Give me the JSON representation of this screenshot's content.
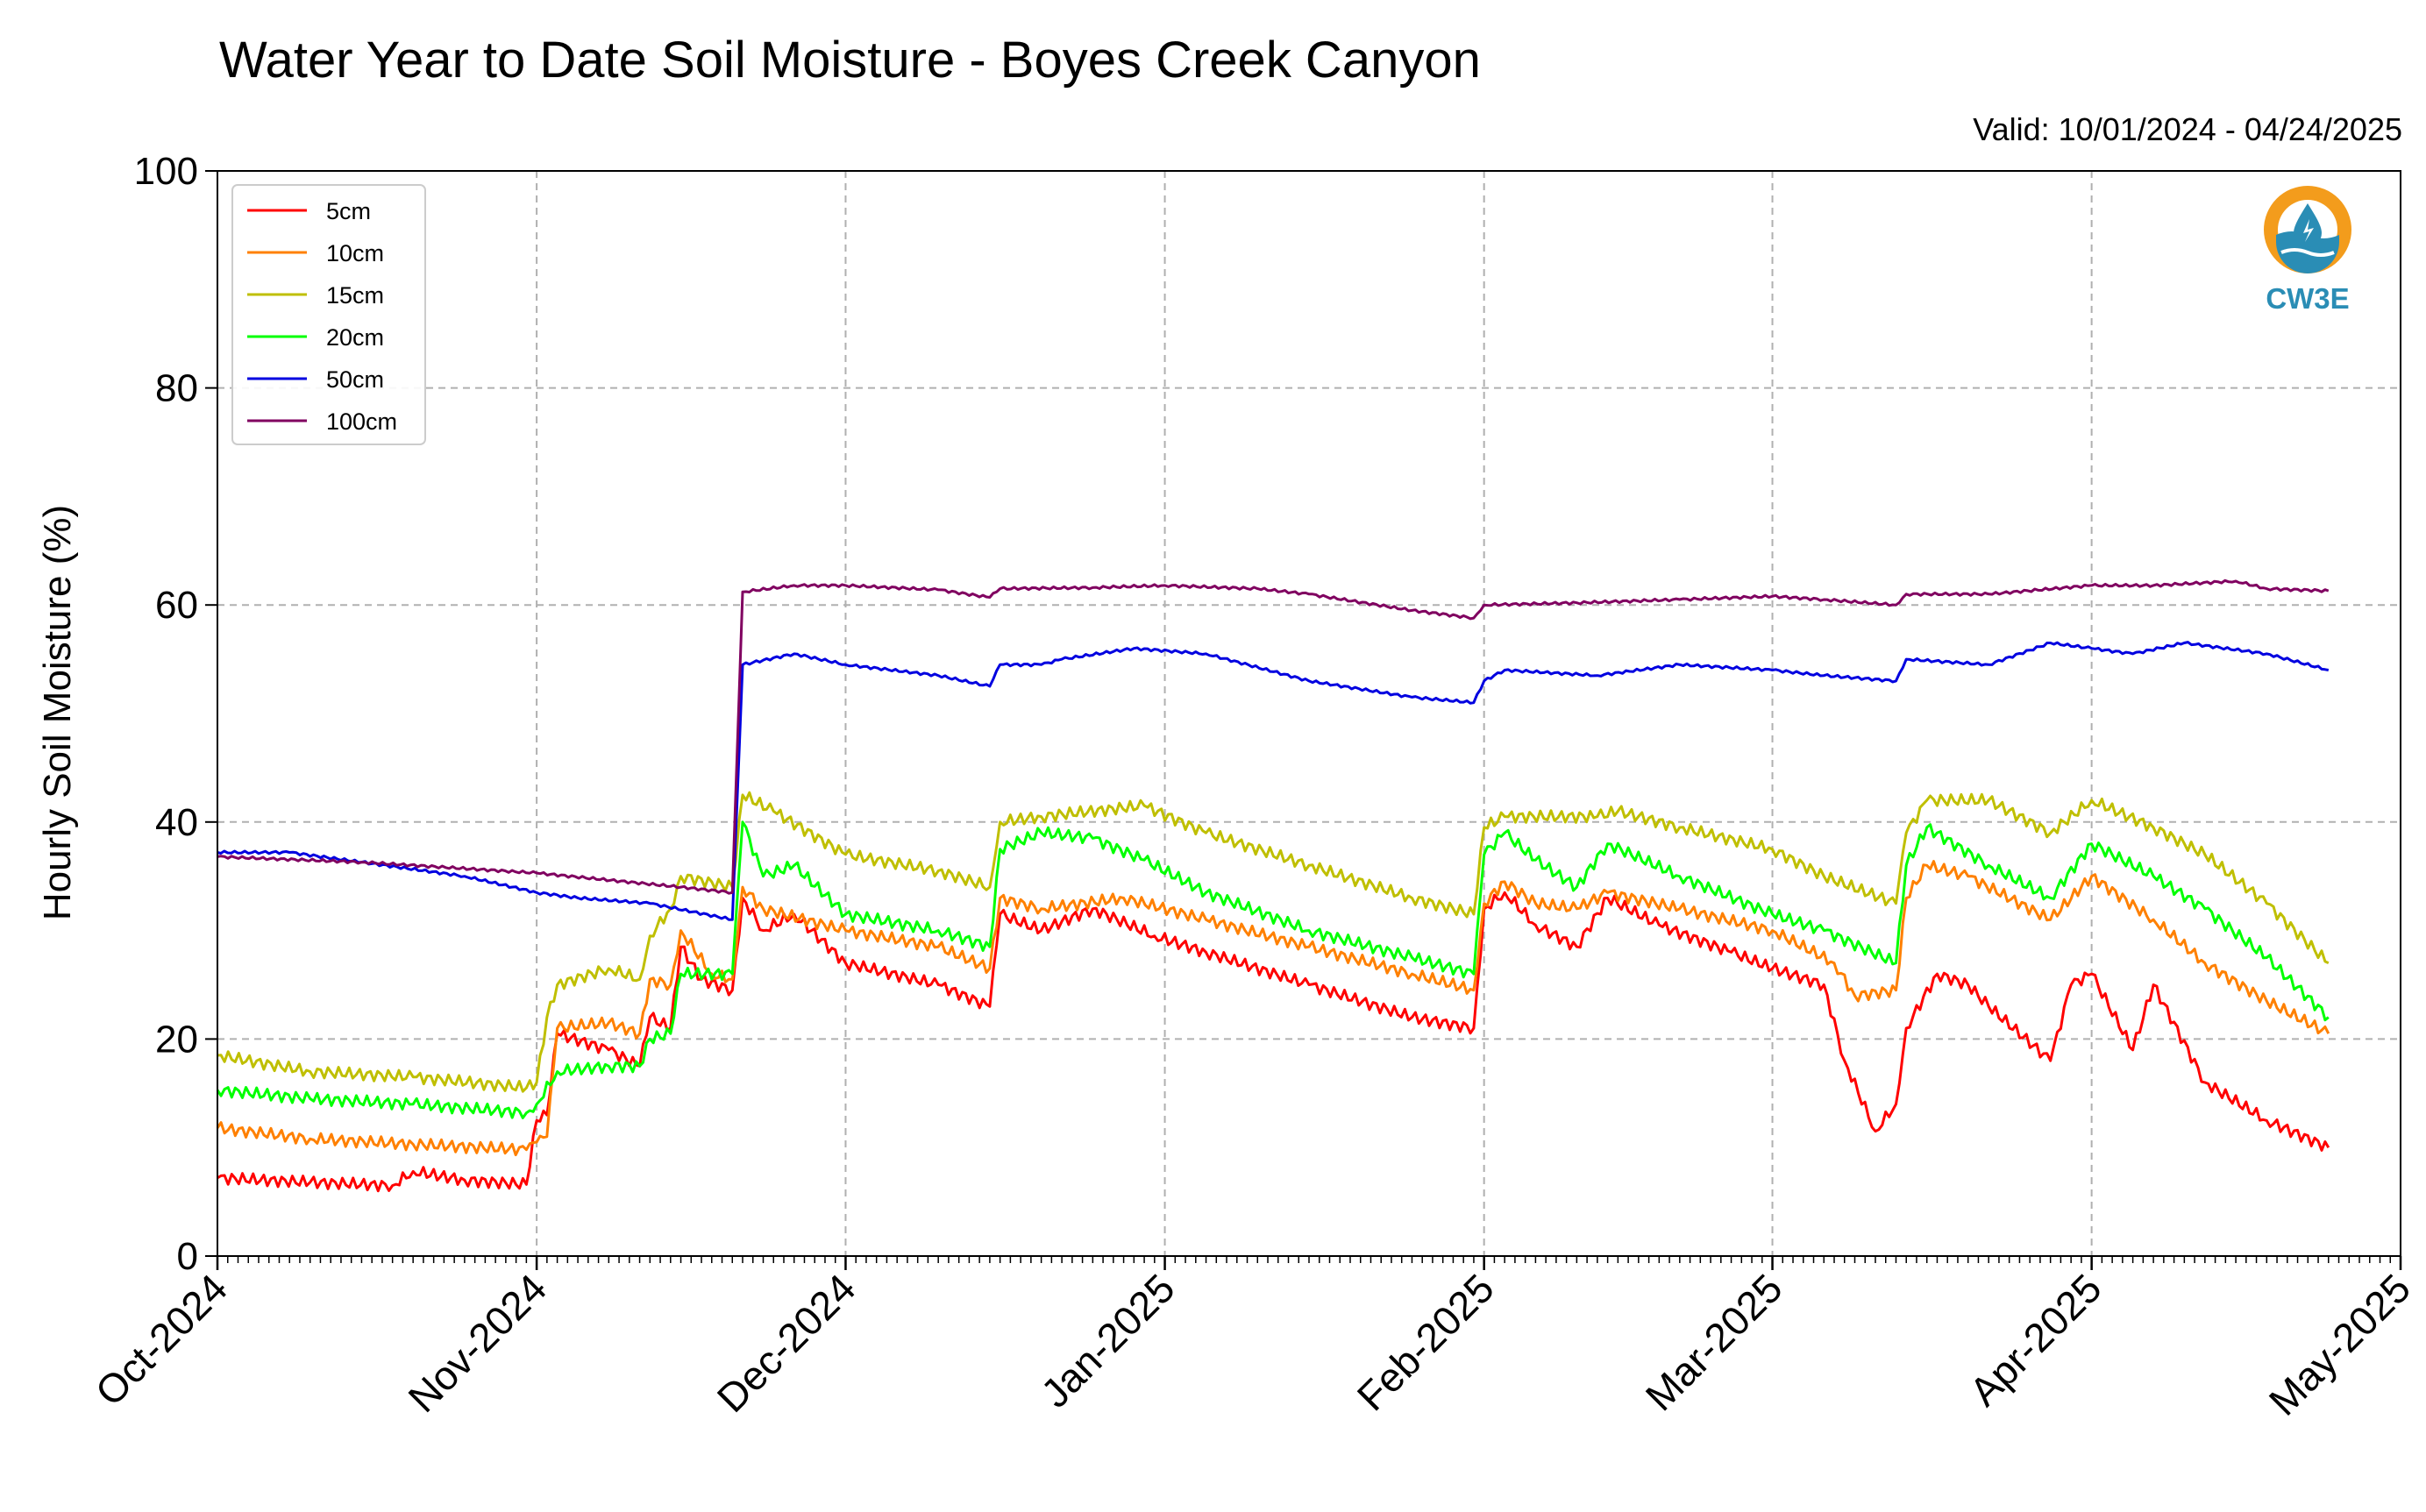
{
  "chart_data": {
    "type": "line",
    "title": "Water Year to Date Soil Moisture - Boyes Creek Canyon",
    "subtitle": "Valid: 10/01/2024 - 04/24/2025",
    "ylabel": "Hourly Soil Moisture (%)",
    "xlabel": "",
    "ylim": [
      0,
      100
    ],
    "yticks": [
      "0",
      "20",
      "40",
      "60",
      "80",
      "100"
    ],
    "xlim": [
      "2024-10-01",
      "2025-05-01"
    ],
    "xticks": [
      {
        "date": "2024-10-01",
        "label": "Oct-2024"
      },
      {
        "date": "2024-11-01",
        "label": "Nov-2024"
      },
      {
        "date": "2024-12-01",
        "label": "Dec-2024"
      },
      {
        "date": "2025-01-01",
        "label": "Jan-2025"
      },
      {
        "date": "2025-02-01",
        "label": "Feb-2025"
      },
      {
        "date": "2025-03-01",
        "label": "Mar-2025"
      },
      {
        "date": "2025-04-01",
        "label": "Apr-2025"
      },
      {
        "date": "2025-05-01",
        "label": "May-2025"
      }
    ],
    "grid": true,
    "legend_position": "top-left",
    "series": [
      {
        "name": "5cm",
        "color": "#ff0000",
        "points": [
          [
            "2024-10-01",
            7.2
          ],
          [
            "2024-10-10",
            6.8
          ],
          [
            "2024-10-18",
            6.5
          ],
          [
            "2024-10-20",
            7.8
          ],
          [
            "2024-10-25",
            7.0
          ],
          [
            "2024-10-31",
            6.6
          ],
          [
            "2024-11-01",
            12.5
          ],
          [
            "2024-11-02",
            13.0
          ],
          [
            "2024-11-03",
            20.5
          ],
          [
            "2024-11-08",
            19.0
          ],
          [
            "2024-11-11",
            17.5
          ],
          [
            "2024-11-12",
            22.0
          ],
          [
            "2024-11-14",
            21.0
          ],
          [
            "2024-11-15",
            28.5
          ],
          [
            "2024-11-17",
            25.5
          ],
          [
            "2024-11-20",
            24.5
          ],
          [
            "2024-11-21",
            33.0
          ],
          [
            "2024-11-23",
            30.0
          ],
          [
            "2024-11-26",
            31.5
          ],
          [
            "2024-12-01",
            27.0
          ],
          [
            "2024-12-10",
            25.0
          ],
          [
            "2024-12-15",
            23.0
          ],
          [
            "2024-12-16",
            31.5
          ],
          [
            "2024-12-20",
            30.0
          ],
          [
            "2024-12-25",
            32.0
          ],
          [
            "2024-12-31",
            29.5
          ],
          [
            "2025-01-05",
            28.0
          ],
          [
            "2025-01-15",
            25.0
          ],
          [
            "2025-01-25",
            22.0
          ],
          [
            "2025-01-31",
            21.0
          ],
          [
            "2025-02-01",
            32.0
          ],
          [
            "2025-02-03",
            33.5
          ],
          [
            "2025-02-06",
            30.5
          ],
          [
            "2025-02-10",
            28.5
          ],
          [
            "2025-02-13",
            33.0
          ],
          [
            "2025-02-18",
            30.5
          ],
          [
            "2025-02-25",
            28.0
          ],
          [
            "2025-03-01",
            26.5
          ],
          [
            "2025-03-06",
            25.0
          ],
          [
            "2025-03-08",
            18.0
          ],
          [
            "2025-03-11",
            11.5
          ],
          [
            "2025-03-13",
            14.0
          ],
          [
            "2025-03-14",
            21.0
          ],
          [
            "2025-03-17",
            26.0
          ],
          [
            "2025-03-20",
            25.0
          ],
          [
            "2025-03-22",
            23.0
          ],
          [
            "2025-03-28",
            18.0
          ],
          [
            "2025-03-30",
            25.0
          ],
          [
            "2025-04-01",
            26.0
          ],
          [
            "2025-04-05",
            19.0
          ],
          [
            "2025-04-07",
            25.0
          ],
          [
            "2025-04-12",
            16.0
          ],
          [
            "2025-04-18",
            12.5
          ],
          [
            "2025-04-24",
            10.0
          ]
        ]
      },
      {
        "name": "10cm",
        "color": "#ff8000",
        "points": [
          [
            "2024-10-01",
            11.8
          ],
          [
            "2024-10-10",
            10.8
          ],
          [
            "2024-10-20",
            10.3
          ],
          [
            "2024-10-31",
            9.8
          ],
          [
            "2024-11-01",
            10.5
          ],
          [
            "2024-11-02",
            11.0
          ],
          [
            "2024-11-03",
            21.0
          ],
          [
            "2024-11-08",
            21.5
          ],
          [
            "2024-11-11",
            20.5
          ],
          [
            "2024-11-12",
            25.5
          ],
          [
            "2024-11-14",
            25.0
          ],
          [
            "2024-11-15",
            30.0
          ],
          [
            "2024-11-18",
            26.0
          ],
          [
            "2024-11-20",
            25.5
          ],
          [
            "2024-11-21",
            34.0
          ],
          [
            "2024-11-23",
            32.0
          ],
          [
            "2024-12-01",
            30.0
          ],
          [
            "2024-12-10",
            28.5
          ],
          [
            "2024-12-15",
            26.5
          ],
          [
            "2024-12-16",
            33.0
          ],
          [
            "2024-12-20",
            32.0
          ],
          [
            "2024-12-28",
            33.0
          ],
          [
            "2025-01-05",
            31.0
          ],
          [
            "2025-01-15",
            28.5
          ],
          [
            "2025-01-25",
            26.0
          ],
          [
            "2025-01-31",
            24.5
          ],
          [
            "2025-02-01",
            32.5
          ],
          [
            "2025-02-03",
            34.5
          ],
          [
            "2025-02-06",
            32.5
          ],
          [
            "2025-02-10",
            32.0
          ],
          [
            "2025-02-13",
            33.5
          ],
          [
            "2025-02-20",
            32.0
          ],
          [
            "2025-03-01",
            30.0
          ],
          [
            "2025-03-07",
            27.0
          ],
          [
            "2025-03-09",
            24.0
          ],
          [
            "2025-03-13",
            24.5
          ],
          [
            "2025-03-14",
            33.0
          ],
          [
            "2025-03-16",
            36.0
          ],
          [
            "2025-03-20",
            35.0
          ],
          [
            "2025-03-28",
            31.0
          ],
          [
            "2025-04-01",
            35.0
          ],
          [
            "2025-04-07",
            31.0
          ],
          [
            "2025-04-12",
            27.0
          ],
          [
            "2025-04-18",
            23.5
          ],
          [
            "2025-04-24",
            20.5
          ]
        ]
      },
      {
        "name": "15cm",
        "color": "#bfbf00",
        "points": [
          [
            "2024-10-01",
            18.5
          ],
          [
            "2024-10-10",
            17.0
          ],
          [
            "2024-10-20",
            16.5
          ],
          [
            "2024-10-31",
            15.5
          ],
          [
            "2024-11-01",
            16.0
          ],
          [
            "2024-11-02",
            22.0
          ],
          [
            "2024-11-03",
            25.0
          ],
          [
            "2024-11-08",
            26.5
          ],
          [
            "2024-11-11",
            25.5
          ],
          [
            "2024-11-12",
            29.5
          ],
          [
            "2024-11-14",
            32.0
          ],
          [
            "2024-11-15",
            35.0
          ],
          [
            "2024-11-20",
            34.0
          ],
          [
            "2024-11-21",
            42.5
          ],
          [
            "2024-11-24",
            41.0
          ],
          [
            "2024-12-01",
            37.0
          ],
          [
            "2024-12-10",
            35.5
          ],
          [
            "2024-12-15",
            34.0
          ],
          [
            "2024-12-16",
            40.0
          ],
          [
            "2024-12-20",
            40.5
          ],
          [
            "2024-12-30",
            41.5
          ],
          [
            "2025-01-05",
            39.0
          ],
          [
            "2025-01-15",
            36.0
          ],
          [
            "2025-01-25",
            33.0
          ],
          [
            "2025-01-31",
            31.5
          ],
          [
            "2025-02-01",
            39.5
          ],
          [
            "2025-02-03",
            40.5
          ],
          [
            "2025-02-12",
            40.5
          ],
          [
            "2025-02-14",
            41.0
          ],
          [
            "2025-02-20",
            39.5
          ],
          [
            "2025-03-01",
            37.5
          ],
          [
            "2025-03-06",
            35.0
          ],
          [
            "2025-03-13",
            32.5
          ],
          [
            "2025-03-14",
            39.0
          ],
          [
            "2025-03-16",
            42.0
          ],
          [
            "2025-03-22",
            42.0
          ],
          [
            "2025-03-28",
            39.0
          ],
          [
            "2025-04-01",
            42.0
          ],
          [
            "2025-04-07",
            39.5
          ],
          [
            "2025-04-12",
            37.0
          ],
          [
            "2025-04-18",
            32.5
          ],
          [
            "2025-04-24",
            27.0
          ]
        ]
      },
      {
        "name": "20cm",
        "color": "#00ff00",
        "points": [
          [
            "2024-10-01",
            15.3
          ],
          [
            "2024-10-10",
            14.5
          ],
          [
            "2024-10-20",
            14.0
          ],
          [
            "2024-10-31",
            13.2
          ],
          [
            "2024-11-01",
            14.0
          ],
          [
            "2024-11-03",
            17.0
          ],
          [
            "2024-11-08",
            17.5
          ],
          [
            "2024-11-11",
            17.5
          ],
          [
            "2024-11-12",
            20.0
          ],
          [
            "2024-11-14",
            20.5
          ],
          [
            "2024-11-15",
            26.0
          ],
          [
            "2024-11-20",
            26.0
          ],
          [
            "2024-11-21",
            40.0
          ],
          [
            "2024-11-23",
            35.0
          ],
          [
            "2024-11-26",
            36.0
          ],
          [
            "2024-12-01",
            31.5
          ],
          [
            "2024-12-10",
            30.0
          ],
          [
            "2024-12-15",
            28.5
          ],
          [
            "2024-12-16",
            37.5
          ],
          [
            "2024-12-20",
            39.0
          ],
          [
            "2024-12-25",
            38.5
          ],
          [
            "2024-12-30",
            36.5
          ],
          [
            "2025-01-05",
            33.5
          ],
          [
            "2025-01-15",
            30.0
          ],
          [
            "2025-01-25",
            27.5
          ],
          [
            "2025-01-31",
            26.0
          ],
          [
            "2025-02-01",
            37.0
          ],
          [
            "2025-02-03",
            39.0
          ],
          [
            "2025-02-06",
            36.5
          ],
          [
            "2025-02-10",
            34.0
          ],
          [
            "2025-02-13",
            38.0
          ],
          [
            "2025-02-20",
            35.0
          ],
          [
            "2025-03-01",
            31.5
          ],
          [
            "2025-03-06",
            30.0
          ],
          [
            "2025-03-13",
            27.0
          ],
          [
            "2025-03-14",
            36.0
          ],
          [
            "2025-03-16",
            39.5
          ],
          [
            "2025-03-22",
            36.0
          ],
          [
            "2025-03-28",
            33.0
          ],
          [
            "2025-04-01",
            38.0
          ],
          [
            "2025-04-07",
            35.0
          ],
          [
            "2025-04-12",
            32.0
          ],
          [
            "2025-04-18",
            27.5
          ],
          [
            "2025-04-24",
            22.0
          ]
        ]
      },
      {
        "name": "50cm",
        "color": "#0000e0",
        "points": [
          [
            "2024-10-01",
            37.2
          ],
          [
            "2024-10-08",
            37.2
          ],
          [
            "2024-10-15",
            36.3
          ],
          [
            "2024-10-25",
            35.0
          ],
          [
            "2024-11-01",
            33.5
          ],
          [
            "2024-11-05",
            33.0
          ],
          [
            "2024-11-12",
            32.5
          ],
          [
            "2024-11-20",
            31.0
          ],
          [
            "2024-11-21",
            54.5
          ],
          [
            "2024-11-26",
            55.5
          ],
          [
            "2024-12-01",
            54.5
          ],
          [
            "2024-12-10",
            53.5
          ],
          [
            "2024-12-15",
            52.5
          ],
          [
            "2024-12-16",
            54.5
          ],
          [
            "2024-12-20",
            54.5
          ],
          [
            "2024-12-22",
            55.0
          ],
          [
            "2024-12-29",
            56.0
          ],
          [
            "2025-01-05",
            55.5
          ],
          [
            "2025-01-15",
            53.0
          ],
          [
            "2025-01-25",
            51.5
          ],
          [
            "2025-01-31",
            51.0
          ],
          [
            "2025-02-01",
            53.0
          ],
          [
            "2025-02-03",
            54.0
          ],
          [
            "2025-02-12",
            53.5
          ],
          [
            "2025-02-20",
            54.5
          ],
          [
            "2025-03-01",
            54.0
          ],
          [
            "2025-03-06",
            53.5
          ],
          [
            "2025-03-13",
            53.0
          ],
          [
            "2025-03-14",
            55.0
          ],
          [
            "2025-03-22",
            54.5
          ],
          [
            "2025-03-28",
            56.5
          ],
          [
            "2025-04-01",
            56.0
          ],
          [
            "2025-04-05",
            55.5
          ],
          [
            "2025-04-10",
            56.5
          ],
          [
            "2025-04-18",
            55.5
          ],
          [
            "2025-04-24",
            54.0
          ]
        ]
      },
      {
        "name": "100cm",
        "color": "#800060",
        "points": [
          [
            "2024-10-01",
            36.8
          ],
          [
            "2024-10-15",
            36.3
          ],
          [
            "2024-11-01",
            35.3
          ],
          [
            "2024-11-15",
            34.0
          ],
          [
            "2024-11-20",
            33.5
          ],
          [
            "2024-11-21",
            61.2
          ],
          [
            "2024-11-26",
            61.8
          ],
          [
            "2024-12-01",
            61.8
          ],
          [
            "2024-12-10",
            61.4
          ],
          [
            "2024-12-15",
            60.7
          ],
          [
            "2024-12-16",
            61.5
          ],
          [
            "2024-12-25",
            61.6
          ],
          [
            "2025-01-01",
            61.8
          ],
          [
            "2025-01-10",
            61.5
          ],
          [
            "2025-01-15",
            61.0
          ],
          [
            "2025-01-25",
            59.5
          ],
          [
            "2025-01-31",
            58.8
          ],
          [
            "2025-02-01",
            60.0
          ],
          [
            "2025-02-10",
            60.2
          ],
          [
            "2025-02-20",
            60.5
          ],
          [
            "2025-03-01",
            60.8
          ],
          [
            "2025-03-06",
            60.5
          ],
          [
            "2025-03-13",
            60.0
          ],
          [
            "2025-03-14",
            61.0
          ],
          [
            "2025-03-22",
            61.0
          ],
          [
            "2025-04-01",
            61.8
          ],
          [
            "2025-04-07",
            61.8
          ],
          [
            "2025-04-15",
            62.2
          ],
          [
            "2025-04-18",
            61.5
          ],
          [
            "2025-04-24",
            61.3
          ]
        ]
      }
    ]
  },
  "logo": {
    "label": "CW3E",
    "icon": "water-drop-logo-icon",
    "colors": [
      "#f39c1c",
      "#2a8db5"
    ]
  }
}
